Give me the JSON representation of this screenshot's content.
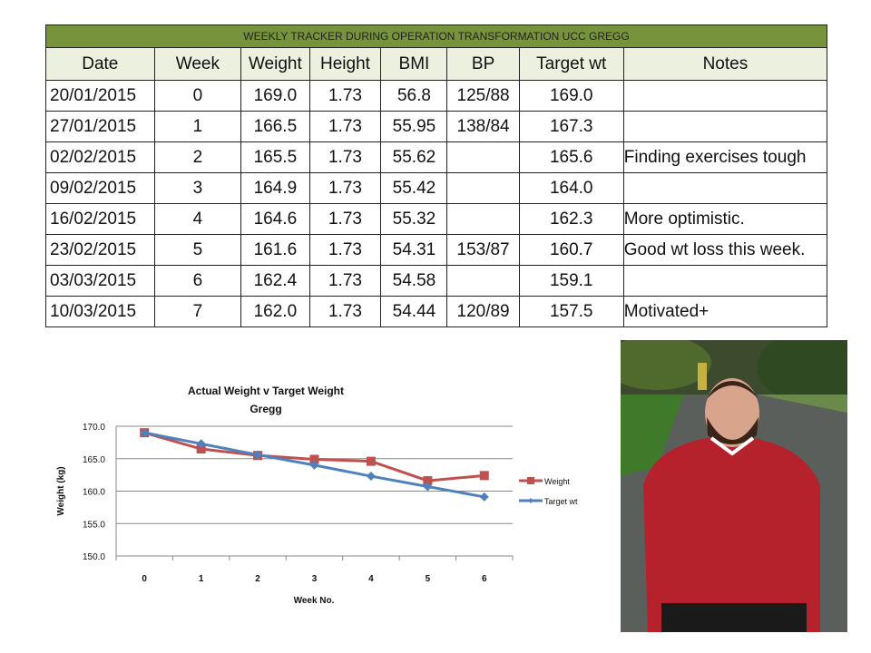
{
  "table": {
    "title": "WEEKLY TRACKER DURING OPERATION TRANSFORMATION UCC GREGG",
    "headers": [
      "Date",
      "Week",
      "Weight",
      "Height",
      "BMI",
      "BP",
      "Target wt",
      "Notes"
    ],
    "rows": [
      [
        "20/01/2015",
        "0",
        "169.0",
        "1.73",
        "56.8",
        "125/88",
        "169.0",
        ""
      ],
      [
        "27/01/2015",
        "1",
        "166.5",
        "1.73",
        "55.95",
        "138/84",
        "167.3",
        ""
      ],
      [
        "02/02/2015",
        "2",
        "165.5",
        "1.73",
        "55.62",
        "",
        "165.6",
        "Finding exercises  tough"
      ],
      [
        "09/02/2015",
        "3",
        "164.9",
        "1.73",
        "55.42",
        "",
        "164.0",
        ""
      ],
      [
        "16/02/2015",
        "4",
        "164.6",
        "1.73",
        "55.32",
        "",
        "162.3",
        "More optimistic."
      ],
      [
        "23/02/2015",
        "5",
        "161.6",
        "1.73",
        "54.31",
        "153/87",
        "160.7",
        "Good wt loss this week."
      ],
      [
        "03/03/2015",
        "6",
        "162.4",
        "1.73",
        "54.58",
        "",
        "159.1",
        ""
      ],
      [
        "10/03/2015",
        "7",
        "162.0",
        "1.73",
        "54.44",
        "120/89",
        "157.5",
        "Motivated+"
      ]
    ]
  },
  "chart_data": {
    "type": "line",
    "title": "Actual Weight v Target Weight",
    "subtitle": "Gregg",
    "xlabel": "Week No.",
    "ylabel": "Weight (kg)",
    "categories": [
      "0",
      "1",
      "2",
      "3",
      "4",
      "5",
      "6"
    ],
    "ylim": [
      150,
      170
    ],
    "yticks": [
      "150.0",
      "155.0",
      "160.0",
      "165.0",
      "170.0"
    ],
    "grid": true,
    "legend": "right",
    "series": [
      {
        "name": "Weight",
        "color": "#c0504d",
        "marker": "square",
        "values": [
          169.0,
          166.5,
          165.5,
          164.9,
          164.6,
          161.6,
          162.4
        ]
      },
      {
        "name": "Target wt",
        "color": "#4f81bd",
        "marker": "diamond",
        "values": [
          169.0,
          167.3,
          165.6,
          164.0,
          162.3,
          160.7,
          159.1
        ]
      }
    ]
  }
}
